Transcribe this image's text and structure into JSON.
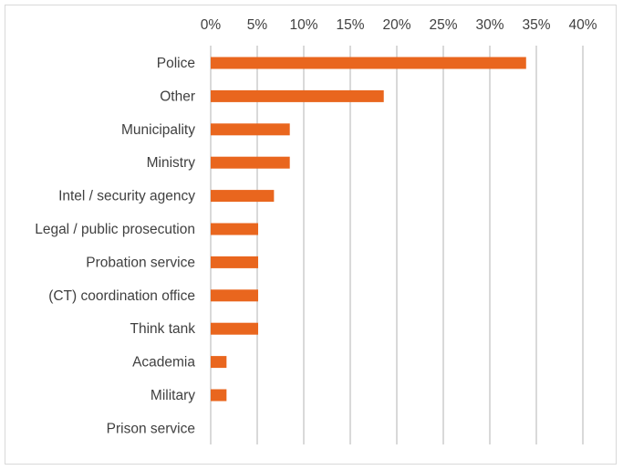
{
  "chart_data": {
    "type": "bar",
    "orientation": "horizontal",
    "title": "",
    "xlabel": "",
    "ylabel": "",
    "categories": [
      "Police",
      "Other",
      "Municipality",
      "Ministry",
      "Intel / security agency",
      "Legal / public prosecution",
      "Probation service",
      "(CT) coordination office",
      "Think tank",
      "Academia",
      "Military",
      "Prison service"
    ],
    "values": [
      33.9,
      18.6,
      8.5,
      8.5,
      6.8,
      5.1,
      5.1,
      5.1,
      5.1,
      1.7,
      1.7,
      0
    ],
    "xlim": [
      0,
      40
    ],
    "xticks": [
      "0%",
      "5%",
      "10%",
      "15%",
      "20%",
      "25%",
      "30%",
      "35%",
      "40%"
    ],
    "axis_position": "top",
    "grid": true,
    "legend": "none",
    "colors": {
      "bar": "#E9661E",
      "grid": "#d9d9d9"
    }
  }
}
